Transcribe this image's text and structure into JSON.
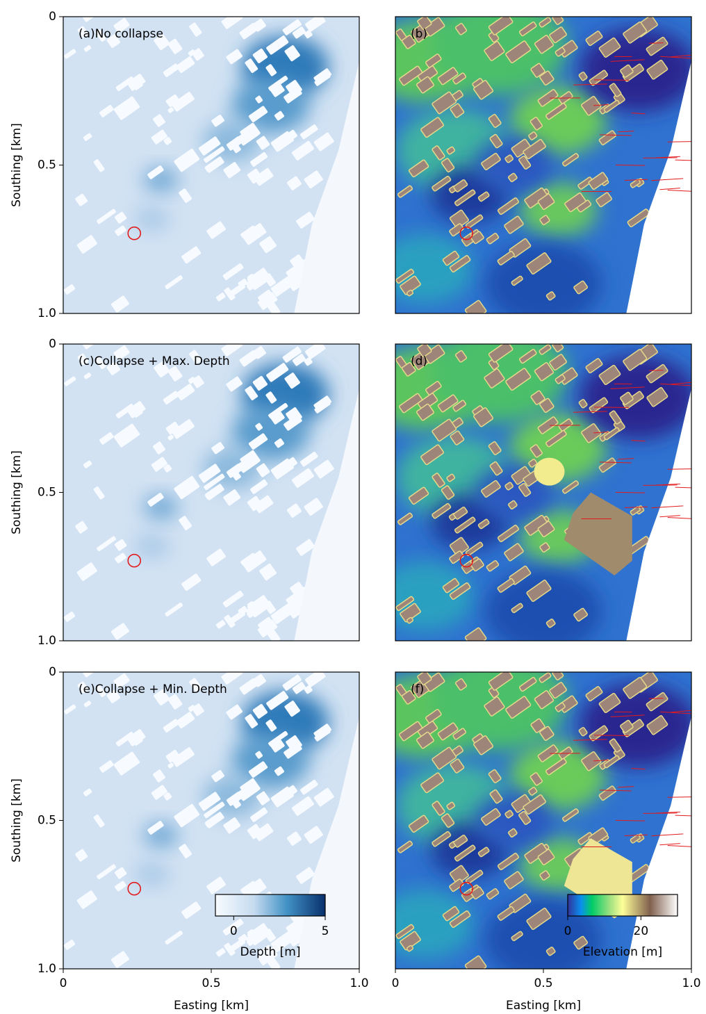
{
  "chart_data": [
    {
      "type": "heatmap",
      "title": "(a)No collapse",
      "ylabel": "Southing [km]",
      "xlim": [
        0,
        1
      ],
      "ylim": [
        1,
        0
      ],
      "yticks": [
        0,
        0.5,
        {
          "value": 1,
          "label": "1.0"
        }
      ],
      "marker": {
        "x": 0.24,
        "y": 0.73,
        "color": "#e31a1c"
      }
    },
    {
      "type": "heatmap",
      "title": "(b)",
      "xlim": [
        0,
        1
      ],
      "ylim": [
        1,
        0
      ],
      "marker": {
        "x": 0.24,
        "y": 0.73,
        "color": "#e31a1c"
      }
    },
    {
      "type": "heatmap",
      "title": "(c)Collapse + Max. Depth",
      "ylabel": "Southing [km]",
      "xlim": [
        0,
        1
      ],
      "ylim": [
        1,
        0
      ],
      "yticks": [
        0,
        0.5,
        {
          "value": 1,
          "label": "1.0"
        }
      ],
      "marker": {
        "x": 0.24,
        "y": 0.73,
        "color": "#e31a1c"
      }
    },
    {
      "type": "heatmap",
      "title": "(d)",
      "xlim": [
        0,
        1
      ],
      "ylim": [
        1,
        0
      ],
      "marker": {
        "x": 0.24,
        "y": 0.73,
        "color": "#e31a1c"
      }
    },
    {
      "type": "heatmap",
      "title": "(e)Collapse + Min. Depth",
      "ylabel": "Southing [km]",
      "xlabel": "Easting [km]",
      "xlim": [
        0,
        1
      ],
      "ylim": [
        1,
        0
      ],
      "xticks": [
        0,
        0.5,
        {
          "value": 1,
          "label": "1.0"
        }
      ],
      "yticks": [
        0,
        0.5,
        {
          "value": 1,
          "label": "1.0"
        }
      ],
      "marker": {
        "x": 0.24,
        "y": 0.73,
        "color": "#e31a1c"
      },
      "colorbar": {
        "label": "Depth [m]",
        "lim": [
          -1,
          5
        ],
        "ticks": [
          0,
          5
        ]
      }
    },
    {
      "type": "heatmap",
      "title": "(f)",
      "xlabel": "Easting [km]",
      "xlim": [
        0,
        1
      ],
      "ylim": [
        1,
        0
      ],
      "xticks": [
        0,
        0.5,
        {
          "value": 1,
          "label": "1.0"
        }
      ],
      "marker": {
        "x": 0.24,
        "y": 0.73,
        "color": "#e31a1c"
      },
      "colorbar": {
        "label": "Elevation [m]",
        "lim": [
          0,
          30
        ],
        "ticks": [
          0,
          20
        ]
      }
    }
  ]
}
